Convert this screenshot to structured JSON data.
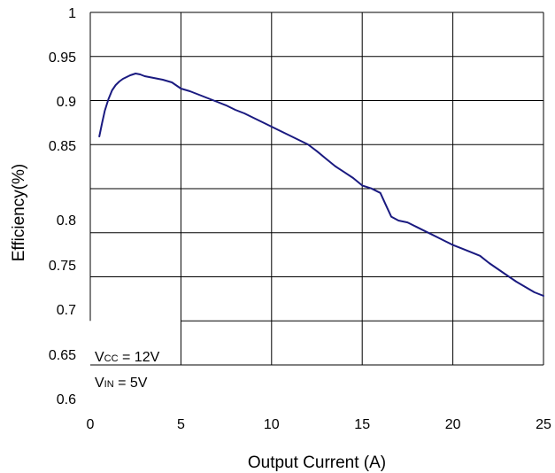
{
  "chart_data": {
    "type": "line",
    "title": "",
    "xlabel": "Output Current (A)",
    "ylabel": "Efficiency(%)",
    "xlim": [
      0,
      25
    ],
    "x_ticks": [
      "0",
      "5",
      "10",
      "15",
      "20",
      "25"
    ],
    "y_ticks": [
      "1",
      "0.95",
      "0.9",
      "0.85",
      "0.8",
      "0.75",
      "0.7",
      "0.65",
      "0.6"
    ],
    "grid": true,
    "legend": "none",
    "series": [
      {
        "color": "#1a1a80",
        "points": [
          [
            0.5,
            0.86
          ],
          [
            0.65,
            0.875
          ],
          [
            0.8,
            0.889
          ],
          [
            1.0,
            0.902
          ],
          [
            1.2,
            0.912
          ],
          [
            1.4,
            0.918
          ],
          [
            1.6,
            0.922
          ],
          [
            1.8,
            0.925
          ],
          [
            2.0,
            0.927
          ],
          [
            2.2,
            0.929
          ],
          [
            2.5,
            0.931
          ],
          [
            2.75,
            0.93
          ],
          [
            3.0,
            0.928
          ],
          [
            3.5,
            0.926
          ],
          [
            4.0,
            0.924
          ],
          [
            4.5,
            0.921
          ],
          [
            5.0,
            0.914
          ],
          [
            5.5,
            0.911
          ],
          [
            6.0,
            0.907
          ],
          [
            6.5,
            0.903
          ],
          [
            7.0,
            0.899
          ],
          [
            7.5,
            0.895
          ],
          [
            8.0,
            0.89
          ],
          [
            8.5,
            0.886
          ],
          [
            9.0,
            0.881
          ],
          [
            9.5,
            0.876
          ],
          [
            10.0,
            0.871
          ],
          [
            10.5,
            0.866
          ],
          [
            11.0,
            0.861
          ],
          [
            11.5,
            0.856
          ],
          [
            12.0,
            0.851
          ],
          [
            12.5,
            0.846
          ],
          [
            13.0,
            0.841
          ],
          [
            13.5,
            0.836
          ],
          [
            14.0,
            0.832
          ],
          [
            14.5,
            0.828
          ],
          [
            15.0,
            0.823
          ],
          [
            15.5,
            0.821
          ],
          [
            16.0,
            0.818
          ],
          [
            16.3,
            0.81
          ],
          [
            16.6,
            0.802
          ],
          [
            17.0,
            0.799
          ],
          [
            17.5,
            0.797
          ],
          [
            18.0,
            0.792
          ],
          [
            18.5,
            0.787
          ],
          [
            18.8,
            0.784
          ],
          [
            19.2,
            0.78
          ],
          [
            19.6,
            0.776
          ],
          [
            20.0,
            0.772
          ],
          [
            20.5,
            0.768
          ],
          [
            21.0,
            0.764
          ],
          [
            21.5,
            0.76
          ],
          [
            22.0,
            0.752
          ],
          [
            22.5,
            0.745
          ],
          [
            23.0,
            0.738
          ],
          [
            23.5,
            0.731
          ],
          [
            24.0,
            0.725
          ],
          [
            24.5,
            0.719
          ],
          [
            25.0,
            0.715
          ]
        ]
      }
    ],
    "annotations": {
      "vcc": {
        "main": "V",
        "sub": "CC",
        "rest": " = 12V"
      },
      "vin": {
        "main": "V",
        "sub": "IN",
        "rest": " = 5V"
      }
    }
  }
}
